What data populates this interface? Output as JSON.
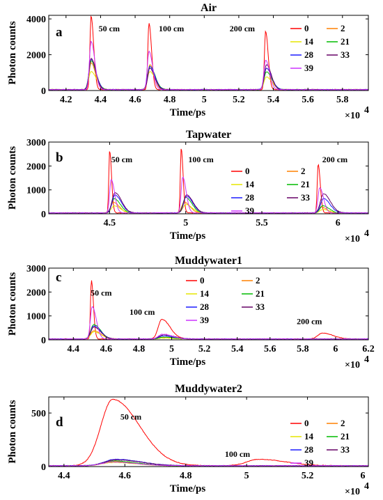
{
  "chart_data": [
    {
      "type": "line",
      "panel": "a",
      "title": "Air",
      "xlabel": "Time/ps",
      "ylabel": "Photon counts",
      "x_multiplier": "×10",
      "x_multiplier_exp": "4",
      "xlim": [
        41000,
        59500
      ],
      "ylim": [
        0,
        4200
      ],
      "xticks": [
        42000,
        44000,
        46000,
        48000,
        50000,
        52000,
        54000,
        56000,
        58000
      ],
      "xtick_labels": [
        "4.2",
        "4.4",
        "4.6",
        "4.8",
        "5",
        "5.2",
        "5.4",
        "5.6",
        "5.8"
      ],
      "yticks": [
        0,
        2000,
        4000
      ],
      "ytick_labels": [
        "0",
        "2000",
        "4000"
      ],
      "legend_position": "top-right",
      "annotations": [
        {
          "text": "50 cm",
          "x": 44500,
          "y": 3300
        },
        {
          "text": "100 cm",
          "x": 48100,
          "y": 3300
        },
        {
          "text": "200 cm",
          "x": 52200,
          "y": 3300
        }
      ],
      "series": [
        {
          "name": "0",
          "color": "#ff0000",
          "peaks": [
            {
              "x": 43450,
              "y": 4100,
              "w": 120
            },
            {
              "x": 46800,
              "y": 3700,
              "w": 120
            },
            {
              "x": 53550,
              "y": 3250,
              "w": 120
            }
          ]
        },
        {
          "name": "2",
          "color": "#ff8000",
          "peaks": [
            {
              "x": 43450,
              "y": 1500,
              "w": 200
            },
            {
              "x": 46850,
              "y": 1400,
              "w": 200
            },
            {
              "x": 53600,
              "y": 1200,
              "w": 220
            }
          ]
        },
        {
          "name": "14",
          "color": "#e6e600",
          "peaks": [
            {
              "x": 43450,
              "y": 1000,
              "w": 250
            },
            {
              "x": 46850,
              "y": 1000,
              "w": 260
            },
            {
              "x": 53600,
              "y": 700,
              "w": 260
            }
          ]
        },
        {
          "name": "21",
          "color": "#00bb00",
          "peaks": [
            {
              "x": 43450,
              "y": 1600,
              "w": 230
            },
            {
              "x": 46850,
              "y": 1300,
              "w": 240
            },
            {
              "x": 53600,
              "y": 1000,
              "w": 250
            }
          ]
        },
        {
          "name": "28",
          "color": "#1a1aff",
          "peaks": [
            {
              "x": 43450,
              "y": 1700,
              "w": 220
            },
            {
              "x": 46850,
              "y": 1300,
              "w": 230
            },
            {
              "x": 53600,
              "y": 1200,
              "w": 240
            }
          ]
        },
        {
          "name": "33",
          "color": "#660066",
          "peaks": [
            {
              "x": 43450,
              "y": 1750,
              "w": 210
            },
            {
              "x": 46850,
              "y": 1200,
              "w": 220
            },
            {
              "x": 53600,
              "y": 1400,
              "w": 220
            }
          ]
        },
        {
          "name": "39",
          "color": "#cc33ff",
          "peaks": [
            {
              "x": 43450,
              "y": 2700,
              "w": 170
            },
            {
              "x": 46800,
              "y": 2150,
              "w": 170
            },
            {
              "x": 53550,
              "y": 1650,
              "w": 180
            }
          ]
        }
      ]
    },
    {
      "type": "line",
      "panel": "b",
      "title": "Tapwater",
      "xlabel": "Time/ps",
      "ylabel": "Photon counts",
      "x_multiplier": "×10",
      "x_multiplier_exp": "4",
      "xlim": [
        41000,
        62000
      ],
      "ylim": [
        0,
        3000
      ],
      "xticks": [
        45000,
        50000,
        55000,
        60000
      ],
      "xtick_labels": [
        "4.5",
        "5",
        "5.5",
        "6"
      ],
      "yticks": [
        0,
        1000,
        2000,
        3000
      ],
      "ytick_labels": [
        "0",
        "1000",
        "2000",
        "3000"
      ],
      "legend_position": "top-right",
      "annotations": [
        {
          "text": "50 cm",
          "x": 45800,
          "y": 2150
        },
        {
          "text": "100 cm",
          "x": 51000,
          "y": 2150
        },
        {
          "text": "200 cm",
          "x": 59800,
          "y": 2150
        }
      ],
      "series": [
        {
          "name": "0",
          "color": "#ff0000",
          "peaks": [
            {
              "x": 45000,
              "y": 2600,
              "w": 100
            },
            {
              "x": 49700,
              "y": 2700,
              "w": 100
            },
            {
              "x": 58700,
              "y": 2050,
              "w": 110
            }
          ]
        },
        {
          "name": "2",
          "color": "#ff8000",
          "peaks": [
            {
              "x": 45250,
              "y": 450,
              "w": 300
            },
            {
              "x": 49900,
              "y": 450,
              "w": 300
            },
            {
              "x": 58900,
              "y": 250,
              "w": 300
            }
          ]
        },
        {
          "name": "14",
          "color": "#e6e600",
          "peaks": [
            {
              "x": 45300,
              "y": 300,
              "w": 330
            },
            {
              "x": 50000,
              "y": 350,
              "w": 330
            },
            {
              "x": 59000,
              "y": 150,
              "w": 330
            }
          ]
        },
        {
          "name": "21",
          "color": "#00bb00",
          "peaks": [
            {
              "x": 45300,
              "y": 600,
              "w": 320
            },
            {
              "x": 50000,
              "y": 650,
              "w": 320
            },
            {
              "x": 59000,
              "y": 300,
              "w": 330
            }
          ]
        },
        {
          "name": "28",
          "color": "#1a1aff",
          "peaks": [
            {
              "x": 45350,
              "y": 750,
              "w": 330
            },
            {
              "x": 50050,
              "y": 700,
              "w": 330
            },
            {
              "x": 59050,
              "y": 600,
              "w": 340
            }
          ]
        },
        {
          "name": "33",
          "color": "#660066",
          "peaks": [
            {
              "x": 45350,
              "y": 850,
              "w": 340
            },
            {
              "x": 50050,
              "y": 750,
              "w": 340
            },
            {
              "x": 59050,
              "y": 800,
              "w": 360
            }
          ]
        },
        {
          "name": "39",
          "color": "#cc33ff",
          "peaks": [
            {
              "x": 45100,
              "y": 1400,
              "w": 180
            },
            {
              "x": 49800,
              "y": 1500,
              "w": 180
            },
            {
              "x": 58800,
              "y": 1050,
              "w": 200
            }
          ]
        }
      ]
    },
    {
      "type": "line",
      "panel": "c",
      "title": "Muddywater1",
      "xlabel": "Time/ps",
      "ylabel": "Photon counts",
      "x_multiplier": "×10",
      "x_multiplier_exp": "4",
      "xlim": [
        42500,
        62000
      ],
      "ylim": [
        0,
        3000
      ],
      "xticks": [
        44000,
        46000,
        48000,
        50000,
        52000,
        54000,
        56000,
        58000,
        60000,
        62000
      ],
      "xtick_labels": [
        "4.4",
        "4.6",
        "4.8",
        "5",
        "5.2",
        "5.4",
        "5.6",
        "5.8",
        "6",
        "6.2"
      ],
      "yticks": [
        0,
        1000,
        2000,
        3000
      ],
      "ytick_labels": [
        "0",
        "1000",
        "2000",
        "3000"
      ],
      "legend_position": "top-center",
      "annotations": [
        {
          "text": "50 cm",
          "x": 45700,
          "y": 1850
        },
        {
          "text": "100 cm",
          "x": 48200,
          "y": 1050
        },
        {
          "text": "200 cm",
          "x": 58400,
          "y": 650
        }
      ],
      "series": [
        {
          "name": "0",
          "color": "#ff0000",
          "peaks": [
            {
              "x": 45100,
              "y": 2450,
              "w": 100
            },
            {
              "x": 49400,
              "y": 820,
              "w": 400
            },
            {
              "x": 59200,
              "y": 250,
              "w": 500
            }
          ]
        },
        {
          "name": "2",
          "color": "#ff8000",
          "peaks": [
            {
              "x": 45250,
              "y": 350,
              "w": 350
            },
            {
              "x": 49500,
              "y": 60,
              "w": 500
            }
          ]
        },
        {
          "name": "14",
          "color": "#e6e600",
          "peaks": [
            {
              "x": 45250,
              "y": 300,
              "w": 350
            },
            {
              "x": 49500,
              "y": 40,
              "w": 500
            }
          ]
        },
        {
          "name": "21",
          "color": "#00bb00",
          "peaks": [
            {
              "x": 45250,
              "y": 600,
              "w": 330
            },
            {
              "x": 49500,
              "y": 80,
              "w": 500
            }
          ]
        },
        {
          "name": "28",
          "color": "#1a1aff",
          "peaks": [
            {
              "x": 45250,
              "y": 550,
              "w": 330
            },
            {
              "x": 49500,
              "y": 130,
              "w": 500
            }
          ]
        },
        {
          "name": "33",
          "color": "#660066",
          "peaks": [
            {
              "x": 45250,
              "y": 500,
              "w": 330
            },
            {
              "x": 49500,
              "y": 170,
              "w": 500
            }
          ]
        },
        {
          "name": "39",
          "color": "#cc33ff",
          "peaks": [
            {
              "x": 45150,
              "y": 1350,
              "w": 200
            },
            {
              "x": 49450,
              "y": 200,
              "w": 450
            }
          ]
        }
      ]
    },
    {
      "type": "line",
      "panel": "d",
      "title": "Muddywater2",
      "xlabel": "Time/ps",
      "ylabel": "Photon counts",
      "x_multiplier": "×10",
      "x_multiplier_exp": "4",
      "xlim": [
        43500,
        54000
      ],
      "ylim": [
        0,
        650
      ],
      "xticks": [
        44000,
        46000,
        48000,
        50000,
        52000
      ],
      "xtick_labels": [
        "4.4",
        "4.6",
        "4.8",
        "5",
        "5.2"
      ],
      "extra_xtick_label": "6",
      "yticks": [
        0,
        500
      ],
      "ytick_labels": [
        "0",
        "500"
      ],
      "legend_position": "top-right",
      "annotations": [
        {
          "text": "50 cm",
          "x": 46200,
          "y": 440
        },
        {
          "text": "100 cm",
          "x": 49700,
          "y": 90
        }
      ],
      "series": [
        {
          "name": "0",
          "color": "#ff0000",
          "peaks": [
            {
              "x": 45600,
              "y": 620,
              "w": 700
            },
            {
              "x": 50400,
              "y": 60,
              "w": 700
            }
          ]
        },
        {
          "name": "2",
          "color": "#ff8000",
          "peaks": [
            {
              "x": 45600,
              "y": 40,
              "w": 600
            }
          ]
        },
        {
          "name": "14",
          "color": "#e6e600",
          "peaks": [
            {
              "x": 45600,
              "y": 30,
              "w": 600
            }
          ]
        },
        {
          "name": "21",
          "color": "#00bb00",
          "peaks": [
            {
              "x": 45600,
              "y": 45,
              "w": 600
            }
          ]
        },
        {
          "name": "28",
          "color": "#1a1aff",
          "peaks": [
            {
              "x": 45700,
              "y": 60,
              "w": 650
            }
          ]
        },
        {
          "name": "33",
          "color": "#660066",
          "peaks": [
            {
              "x": 45700,
              "y": 55,
              "w": 650
            }
          ]
        },
        {
          "name": "39",
          "color": "#cc33ff",
          "peaks": [
            {
              "x": 45600,
              "y": 35,
              "w": 600
            }
          ]
        }
      ]
    }
  ]
}
